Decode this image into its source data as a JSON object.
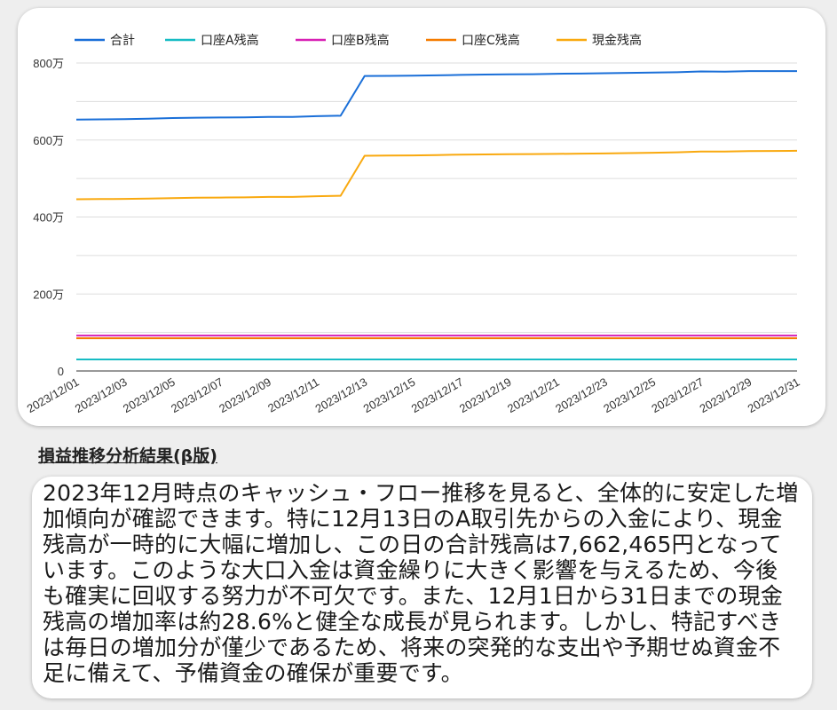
{
  "chart_data": {
    "type": "line",
    "legend_position": "top-left",
    "grid": true,
    "ylim": [
      0,
      8000000
    ],
    "y_ticks": [
      {
        "value": 0,
        "label": "0"
      },
      {
        "value": 2000000,
        "label": "200万"
      },
      {
        "value": 4000000,
        "label": "400万"
      },
      {
        "value": 6000000,
        "label": "600万"
      },
      {
        "value": 8000000,
        "label": "800万"
      }
    ],
    "x_tick_labels": [
      "2023/12/01",
      "2023/12/03",
      "2023/12/05",
      "2023/12/07",
      "2023/12/09",
      "2023/12/11",
      "2023/12/13",
      "2023/12/15",
      "2023/12/17",
      "2023/12/19",
      "2023/12/21",
      "2023/12/23",
      "2023/12/25",
      "2023/12/27",
      "2023/12/29",
      "2023/12/31"
    ],
    "x": [
      "2023/12/01",
      "2023/12/02",
      "2023/12/03",
      "2023/12/04",
      "2023/12/05",
      "2023/12/06",
      "2023/12/07",
      "2023/12/08",
      "2023/12/09",
      "2023/12/10",
      "2023/12/11",
      "2023/12/12",
      "2023/12/13",
      "2023/12/14",
      "2023/12/15",
      "2023/12/16",
      "2023/12/17",
      "2023/12/18",
      "2023/12/19",
      "2023/12/20",
      "2023/12/21",
      "2023/12/22",
      "2023/12/23",
      "2023/12/24",
      "2023/12/25",
      "2023/12/26",
      "2023/12/27",
      "2023/12/28",
      "2023/12/29",
      "2023/12/30",
      "2023/12/31"
    ],
    "series": [
      {
        "name": "合計",
        "color": "#1a6fd8",
        "values": [
          6530000,
          6535000,
          6540000,
          6555000,
          6570000,
          6580000,
          6585000,
          6590000,
          6600000,
          6600000,
          6620000,
          6630000,
          7662465,
          7665000,
          7670000,
          7680000,
          7690000,
          7700000,
          7705000,
          7710000,
          7720000,
          7725000,
          7735000,
          7745000,
          7750000,
          7760000,
          7780000,
          7775000,
          7790000,
          7790000,
          7790000
        ]
      },
      {
        "name": "口座A残高",
        "color": "#17bcc4",
        "values": [
          300000,
          300000,
          300000,
          300000,
          300000,
          300000,
          300000,
          300000,
          300000,
          300000,
          300000,
          300000,
          300000,
          300000,
          300000,
          300000,
          300000,
          300000,
          300000,
          300000,
          300000,
          300000,
          300000,
          300000,
          300000,
          300000,
          300000,
          300000,
          300000,
          300000,
          300000
        ]
      },
      {
        "name": "口座B残高",
        "color": "#d821b5",
        "values": [
          920000,
          920000,
          920000,
          920000,
          920000,
          920000,
          920000,
          920000,
          920000,
          920000,
          920000,
          920000,
          920000,
          920000,
          920000,
          920000,
          920000,
          920000,
          920000,
          920000,
          920000,
          920000,
          920000,
          920000,
          920000,
          920000,
          920000,
          920000,
          920000,
          920000,
          920000
        ]
      },
      {
        "name": "口座C残高",
        "color": "#f57c00",
        "values": [
          850000,
          850000,
          850000,
          850000,
          850000,
          850000,
          850000,
          850000,
          850000,
          850000,
          850000,
          850000,
          850000,
          850000,
          850000,
          850000,
          850000,
          850000,
          850000,
          850000,
          850000,
          850000,
          850000,
          850000,
          850000,
          850000,
          850000,
          850000,
          850000,
          850000,
          850000
        ]
      },
      {
        "name": "現金残高",
        "color": "#f9a90f",
        "values": [
          4460000,
          4465000,
          4470000,
          4480000,
          4490000,
          4500000,
          4505000,
          4510000,
          4520000,
          4520000,
          4540000,
          4550000,
          5590000,
          5595000,
          5600000,
          5610000,
          5620000,
          5625000,
          5630000,
          5635000,
          5640000,
          5645000,
          5650000,
          5660000,
          5670000,
          5680000,
          5700000,
          5700000,
          5710000,
          5715000,
          5720000
        ]
      }
    ]
  },
  "analysis": {
    "title": "損益推移分析結果(β版)",
    "text": "2023年12月時点のキャッシュ・フロー推移を見ると、全体的に安定した増加傾向が確認できます。特に12月13日のA取引先からの入金により、現金残高が一時的に大幅に増加し、この日の合計残高は7,662,465円となっています。このような大口入金は資金繰りに大きく影響を与えるため、今後も確実に回収する努力が不可欠です。また、12月1日から31日までの現金残高の増加率は約28.6%と健全な成長が見られます。しかし、特記すべきは毎日の増加分が僅少であるため、将来の突発的な支出や予期せぬ資金不足に備えて、予備資金の確保が重要です。"
  }
}
